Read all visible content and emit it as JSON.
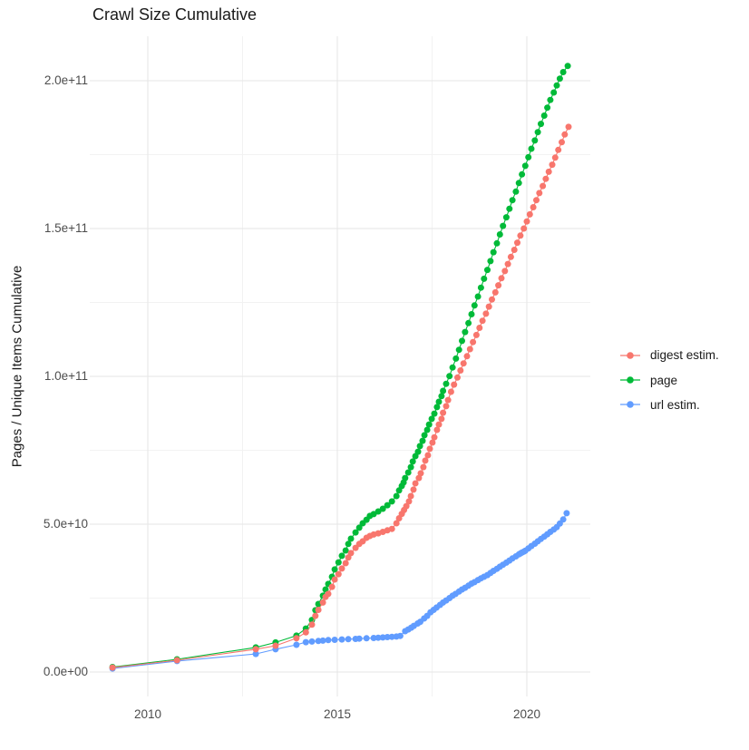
{
  "chart_data": {
    "type": "scatter",
    "title": "Crawl Size Cumulative",
    "xlabel": "",
    "ylabel": "Pages / Unique Items Cumulative",
    "grid": true,
    "legend_position": "right",
    "value_unit": "1e9 (all y values below are billions of items)",
    "x_axis": {
      "ticks": [
        {
          "value": 2010,
          "label": "2010"
        },
        {
          "value": 2015,
          "label": "2015"
        },
        {
          "value": 2020,
          "label": "2020"
        }
      ],
      "minor_ticks": [
        2012.5,
        2017.5
      ],
      "range": [
        2008.47,
        2021.68
      ]
    },
    "y_axis": {
      "ticks": [
        {
          "value_e9": 0,
          "label": "0.0e+00"
        },
        {
          "value_e9": 50,
          "label": "5.0e+10"
        },
        {
          "value_e9": 100,
          "label": "1.0e+11"
        },
        {
          "value_e9": 150,
          "label": "1.5e+11"
        },
        {
          "value_e9": 200,
          "label": "2.0e+11"
        }
      ],
      "minor_ticks_e9": [
        25,
        75,
        125,
        175
      ],
      "range_e9": [
        -8.3,
        215.0
      ]
    },
    "series": [
      {
        "name": "digest estim.",
        "color": "#F8766D",
        "points": [
          [
            2009.07,
            1.5
          ],
          [
            2010.77,
            4.0
          ],
          [
            2012.85,
            7.7
          ],
          [
            2013.37,
            8.9
          ],
          [
            2013.92,
            11.4
          ],
          [
            2014.17,
            13.4
          ],
          [
            2014.33,
            16.0
          ],
          [
            2014.42,
            19.0
          ],
          [
            2014.5,
            21.0
          ],
          [
            2014.62,
            23.5
          ],
          [
            2014.69,
            25.4
          ],
          [
            2014.76,
            26.4
          ],
          [
            2014.86,
            28.8
          ],
          [
            2014.93,
            31.3
          ],
          [
            2015.03,
            33.1
          ],
          [
            2015.12,
            35.0
          ],
          [
            2015.22,
            36.8
          ],
          [
            2015.29,
            38.7
          ],
          [
            2015.36,
            40.2
          ],
          [
            2015.48,
            42.0
          ],
          [
            2015.58,
            43.3
          ],
          [
            2015.67,
            44.2
          ],
          [
            2015.77,
            45.4
          ],
          [
            2015.86,
            46.0
          ],
          [
            2015.96,
            46.5
          ],
          [
            2016.08,
            46.9
          ],
          [
            2016.2,
            47.4
          ],
          [
            2016.32,
            47.9
          ],
          [
            2016.44,
            48.4
          ],
          [
            2016.56,
            50.3
          ],
          [
            2016.63,
            52.0
          ],
          [
            2016.7,
            53.5
          ],
          [
            2016.76,
            54.8
          ],
          [
            2016.82,
            56.1
          ],
          [
            2016.89,
            57.7
          ],
          [
            2016.94,
            59.5
          ],
          [
            2017.01,
            61.7
          ],
          [
            2017.06,
            63.8
          ],
          [
            2017.15,
            65.6
          ],
          [
            2017.2,
            67.2
          ],
          [
            2017.27,
            69.3
          ],
          [
            2017.32,
            71.5
          ],
          [
            2017.39,
            73.3
          ],
          [
            2017.44,
            75.5
          ],
          [
            2017.51,
            77.6
          ],
          [
            2017.56,
            79.4
          ],
          [
            2017.63,
            81.9
          ],
          [
            2017.68,
            83.7
          ],
          [
            2017.75,
            85.6
          ],
          [
            2017.79,
            87.7
          ],
          [
            2017.87,
            89.9
          ],
          [
            2017.92,
            92.0
          ],
          [
            2018.0,
            94.8
          ],
          [
            2018.08,
            97.2
          ],
          [
            2018.17,
            99.6
          ],
          [
            2018.25,
            102.0
          ],
          [
            2018.33,
            104.4
          ],
          [
            2018.42,
            106.8
          ],
          [
            2018.5,
            109.2
          ],
          [
            2018.58,
            111.6
          ],
          [
            2018.67,
            114.0
          ],
          [
            2018.75,
            116.4
          ],
          [
            2018.83,
            118.8
          ],
          [
            2018.92,
            121.2
          ],
          [
            2019.0,
            123.6
          ],
          [
            2019.08,
            126.0
          ],
          [
            2019.17,
            128.4
          ],
          [
            2019.25,
            130.8
          ],
          [
            2019.33,
            133.2
          ],
          [
            2019.42,
            135.6
          ],
          [
            2019.5,
            138.0
          ],
          [
            2019.58,
            140.4
          ],
          [
            2019.67,
            142.8
          ],
          [
            2019.75,
            145.2
          ],
          [
            2019.83,
            147.6
          ],
          [
            2019.92,
            150.0
          ],
          [
            2020.0,
            152.4
          ],
          [
            2020.08,
            154.8
          ],
          [
            2020.17,
            157.2
          ],
          [
            2020.25,
            159.6
          ],
          [
            2020.33,
            162.0
          ],
          [
            2020.42,
            164.4
          ],
          [
            2020.5,
            166.8
          ],
          [
            2020.58,
            169.2
          ],
          [
            2020.67,
            171.6
          ],
          [
            2020.75,
            174.0
          ],
          [
            2020.83,
            176.6
          ],
          [
            2020.92,
            179.2
          ],
          [
            2021.0,
            181.8
          ],
          [
            2021.1,
            184.4
          ]
        ]
      },
      {
        "name": "page",
        "color": "#00BA38",
        "points": [
          [
            2009.07,
            1.7
          ],
          [
            2010.77,
            4.3
          ],
          [
            2012.85,
            8.3
          ],
          [
            2013.37,
            10.0
          ],
          [
            2013.92,
            12.3
          ],
          [
            2014.17,
            14.7
          ],
          [
            2014.33,
            17.6
          ],
          [
            2014.42,
            20.9
          ],
          [
            2014.5,
            23.0
          ],
          [
            2014.62,
            25.8
          ],
          [
            2014.69,
            27.9
          ],
          [
            2014.76,
            29.8
          ],
          [
            2014.86,
            32.2
          ],
          [
            2014.93,
            34.7
          ],
          [
            2015.03,
            37.1
          ],
          [
            2015.12,
            39.3
          ],
          [
            2015.22,
            41.1
          ],
          [
            2015.29,
            43.3
          ],
          [
            2015.36,
            45.1
          ],
          [
            2015.48,
            47.2
          ],
          [
            2015.58,
            48.8
          ],
          [
            2015.67,
            50.3
          ],
          [
            2015.77,
            51.5
          ],
          [
            2015.86,
            52.8
          ],
          [
            2015.96,
            53.4
          ],
          [
            2016.08,
            54.3
          ],
          [
            2016.2,
            55.2
          ],
          [
            2016.32,
            56.4
          ],
          [
            2016.44,
            57.7
          ],
          [
            2016.56,
            59.5
          ],
          [
            2016.63,
            61.4
          ],
          [
            2016.7,
            62.9
          ],
          [
            2016.75,
            64.1
          ],
          [
            2016.79,
            65.6
          ],
          [
            2016.87,
            67.5
          ],
          [
            2016.94,
            69.3
          ],
          [
            2016.99,
            71.2
          ],
          [
            2017.06,
            73.0
          ],
          [
            2017.13,
            74.5
          ],
          [
            2017.18,
            76.4
          ],
          [
            2017.25,
            78.2
          ],
          [
            2017.3,
            80.1
          ],
          [
            2017.37,
            81.9
          ],
          [
            2017.42,
            83.7
          ],
          [
            2017.49,
            85.6
          ],
          [
            2017.56,
            87.4
          ],
          [
            2017.63,
            89.6
          ],
          [
            2017.68,
            91.4
          ],
          [
            2017.75,
            93.3
          ],
          [
            2017.79,
            95.1
          ],
          [
            2017.87,
            97.5
          ],
          [
            2017.96,
            100.1
          ],
          [
            2018.04,
            103.0
          ],
          [
            2018.13,
            106.0
          ],
          [
            2018.21,
            109.0
          ],
          [
            2018.29,
            112.0
          ],
          [
            2018.37,
            115.0
          ],
          [
            2018.46,
            118.0
          ],
          [
            2018.54,
            121.0
          ],
          [
            2018.62,
            124.0
          ],
          [
            2018.71,
            127.0
          ],
          [
            2018.79,
            130.0
          ],
          [
            2018.87,
            133.0
          ],
          [
            2018.96,
            136.0
          ],
          [
            2019.04,
            139.0
          ],
          [
            2019.12,
            142.0
          ],
          [
            2019.21,
            145.0
          ],
          [
            2019.29,
            148.0
          ],
          [
            2019.37,
            150.9
          ],
          [
            2019.46,
            153.8
          ],
          [
            2019.54,
            156.7
          ],
          [
            2019.62,
            159.6
          ],
          [
            2019.71,
            162.5
          ],
          [
            2019.79,
            165.4
          ],
          [
            2019.87,
            168.3
          ],
          [
            2019.96,
            171.2
          ],
          [
            2020.04,
            174.1
          ],
          [
            2020.12,
            177.0
          ],
          [
            2020.21,
            179.8
          ],
          [
            2020.29,
            182.6
          ],
          [
            2020.37,
            185.4
          ],
          [
            2020.46,
            188.2
          ],
          [
            2020.54,
            190.9
          ],
          [
            2020.62,
            193.5
          ],
          [
            2020.71,
            196.0
          ],
          [
            2020.79,
            198.4
          ],
          [
            2020.87,
            200.7
          ],
          [
            2020.96,
            202.9
          ],
          [
            2021.08,
            205.0
          ]
        ]
      },
      {
        "name": "url estim.",
        "color": "#619CFF",
        "points": [
          [
            2009.07,
            1.2
          ],
          [
            2010.77,
            3.7
          ],
          [
            2012.85,
            6.1
          ],
          [
            2013.37,
            7.7
          ],
          [
            2013.92,
            9.2
          ],
          [
            2014.17,
            10.1
          ],
          [
            2014.33,
            10.3
          ],
          [
            2014.5,
            10.5
          ],
          [
            2014.62,
            10.6
          ],
          [
            2014.76,
            10.8
          ],
          [
            2014.93,
            10.9
          ],
          [
            2015.12,
            11.0
          ],
          [
            2015.29,
            11.1
          ],
          [
            2015.48,
            11.2
          ],
          [
            2015.58,
            11.3
          ],
          [
            2015.77,
            11.4
          ],
          [
            2015.96,
            11.5
          ],
          [
            2016.08,
            11.6
          ],
          [
            2016.2,
            11.7
          ],
          [
            2016.32,
            11.8
          ],
          [
            2016.44,
            11.9
          ],
          [
            2016.56,
            12.0
          ],
          [
            2016.66,
            12.2
          ],
          [
            2016.79,
            13.8
          ],
          [
            2016.87,
            14.4
          ],
          [
            2016.95,
            15.0
          ],
          [
            2017.02,
            15.6
          ],
          [
            2017.12,
            16.4
          ],
          [
            2017.19,
            17.0
          ],
          [
            2017.29,
            18.1
          ],
          [
            2017.37,
            19.0
          ],
          [
            2017.46,
            20.2
          ],
          [
            2017.54,
            21.0
          ],
          [
            2017.62,
            21.8
          ],
          [
            2017.71,
            22.7
          ],
          [
            2017.79,
            23.5
          ],
          [
            2017.87,
            24.2
          ],
          [
            2017.96,
            25.0
          ],
          [
            2018.04,
            25.8
          ],
          [
            2018.12,
            26.4
          ],
          [
            2018.21,
            27.2
          ],
          [
            2018.29,
            27.9
          ],
          [
            2018.37,
            28.5
          ],
          [
            2018.46,
            29.2
          ],
          [
            2018.54,
            29.9
          ],
          [
            2018.62,
            30.4
          ],
          [
            2018.71,
            31.1
          ],
          [
            2018.79,
            31.7
          ],
          [
            2018.87,
            32.2
          ],
          [
            2018.96,
            32.8
          ],
          [
            2019.04,
            33.5
          ],
          [
            2019.12,
            34.2
          ],
          [
            2019.21,
            34.9
          ],
          [
            2019.29,
            35.6
          ],
          [
            2019.37,
            36.3
          ],
          [
            2019.46,
            37.0
          ],
          [
            2019.54,
            37.7
          ],
          [
            2019.62,
            38.4
          ],
          [
            2019.71,
            39.1
          ],
          [
            2019.79,
            39.8
          ],
          [
            2019.83,
            40.1
          ],
          [
            2019.87,
            40.4
          ],
          [
            2019.92,
            40.7
          ],
          [
            2019.96,
            41.0
          ],
          [
            2020.04,
            41.8
          ],
          [
            2020.12,
            42.6
          ],
          [
            2020.21,
            43.4
          ],
          [
            2020.29,
            44.2
          ],
          [
            2020.37,
            45.0
          ],
          [
            2020.46,
            45.8
          ],
          [
            2020.54,
            46.6
          ],
          [
            2020.62,
            47.4
          ],
          [
            2020.71,
            48.2
          ],
          [
            2020.79,
            49.0
          ],
          [
            2020.87,
            50.2
          ],
          [
            2020.96,
            51.6
          ],
          [
            2021.05,
            53.7
          ]
        ]
      }
    ],
    "legend": {
      "items": [
        {
          "label": "digest estim.",
          "color": "#F8766D"
        },
        {
          "label": "page",
          "color": "#00BA38"
        },
        {
          "label": "url estim.",
          "color": "#619CFF"
        }
      ]
    },
    "colors": {
      "grid_major": "#E6E6E6",
      "grid_minor": "#F2F2F2",
      "axis_text": "#4d4d4d",
      "text": "#1a1a1a",
      "background": "#ffffff"
    }
  }
}
